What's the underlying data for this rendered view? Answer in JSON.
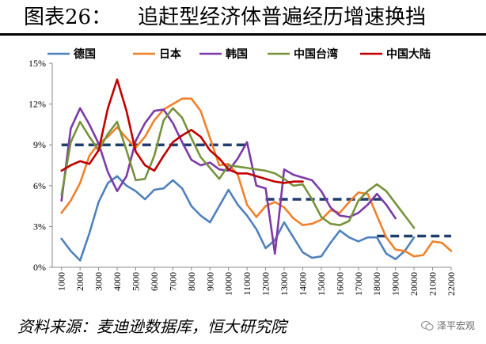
{
  "header": {
    "title": "图表26：    追赶型经济体普遍经历增速换挡"
  },
  "footer": {
    "source": "资料来源：麦迪逊数据库，恒大研究院",
    "watermark": "泽平宏观"
  },
  "chart_data": {
    "type": "line",
    "xlabel": "",
    "ylabel": "",
    "x": [
      1000,
      2000,
      3000,
      4000,
      5000,
      6000,
      7000,
      8000,
      9000,
      10000,
      11000,
      12000,
      13000,
      14000,
      15000,
      16000,
      17000,
      18000,
      19000,
      20000,
      21000,
      22000
    ],
    "y_ticks": [
      "0%",
      "3%",
      "6%",
      "9%",
      "12%",
      "15%"
    ],
    "ylim": [
      0,
      15
    ],
    "grid": false,
    "legend_position": "top",
    "series": [
      {
        "name": "德国",
        "color": "#4f81bd",
        "points": [
          [
            1000,
            2.1
          ],
          [
            1500,
            1.2
          ],
          [
            2000,
            0.5
          ],
          [
            2500,
            2.5
          ],
          [
            3000,
            4.8
          ],
          [
            3500,
            6.2
          ],
          [
            4000,
            6.7
          ],
          [
            4500,
            6.0
          ],
          [
            5000,
            5.6
          ],
          [
            5500,
            5.0
          ],
          [
            6000,
            5.7
          ],
          [
            6500,
            5.8
          ],
          [
            7000,
            6.4
          ],
          [
            7500,
            5.8
          ],
          [
            8000,
            4.5
          ],
          [
            8500,
            3.8
          ],
          [
            9000,
            3.3
          ],
          [
            9500,
            4.5
          ],
          [
            10000,
            5.7
          ],
          [
            10500,
            4.6
          ],
          [
            11000,
            3.8
          ],
          [
            11500,
            2.8
          ],
          [
            12000,
            1.4
          ],
          [
            12500,
            2.0
          ],
          [
            13000,
            3.3
          ],
          [
            13500,
            2.2
          ],
          [
            14000,
            1.1
          ],
          [
            14500,
            0.7
          ],
          [
            15000,
            0.8
          ],
          [
            15500,
            1.8
          ],
          [
            16000,
            2.7
          ],
          [
            16500,
            2.2
          ],
          [
            17000,
            1.9
          ],
          [
            17500,
            2.2
          ],
          [
            18000,
            2.2
          ],
          [
            18500,
            1.0
          ],
          [
            19000,
            0.6
          ],
          [
            19500,
            1.2
          ],
          [
            20000,
            2.2
          ]
        ]
      },
      {
        "name": "日本",
        "color": "#f0812b",
        "points": [
          [
            1000,
            4.0
          ],
          [
            1500,
            4.9
          ],
          [
            2000,
            6.2
          ],
          [
            2500,
            8.2
          ],
          [
            3000,
            9.1
          ],
          [
            3500,
            9.6
          ],
          [
            4000,
            10.3
          ],
          [
            4500,
            9.5
          ],
          [
            5000,
            8.8
          ],
          [
            5500,
            9.6
          ],
          [
            6000,
            10.8
          ],
          [
            6500,
            11.6
          ],
          [
            7000,
            12.0
          ],
          [
            7500,
            12.4
          ],
          [
            8000,
            12.4
          ],
          [
            8500,
            11.5
          ],
          [
            9000,
            9.5
          ],
          [
            9500,
            7.5
          ],
          [
            10000,
            7.6
          ],
          [
            10500,
            6.8
          ],
          [
            11000,
            4.6
          ],
          [
            11500,
            3.7
          ],
          [
            12000,
            4.5
          ],
          [
            12500,
            4.8
          ],
          [
            13000,
            4.4
          ],
          [
            13500,
            3.6
          ],
          [
            14000,
            3.1
          ],
          [
            14500,
            3.2
          ],
          [
            15000,
            3.5
          ],
          [
            15500,
            4.2
          ],
          [
            16000,
            4.0
          ],
          [
            16500,
            4.8
          ],
          [
            17000,
            5.5
          ],
          [
            17500,
            5.4
          ],
          [
            18000,
            3.8
          ],
          [
            18500,
            2.2
          ],
          [
            19000,
            1.3
          ],
          [
            19500,
            1.2
          ],
          [
            20000,
            0.8
          ],
          [
            20500,
            0.9
          ],
          [
            21000,
            1.9
          ],
          [
            21500,
            1.8
          ],
          [
            22000,
            1.2
          ]
        ]
      },
      {
        "name": "韩国",
        "color": "#7c3aa8",
        "points": [
          [
            1000,
            4.9
          ],
          [
            1500,
            10.2
          ],
          [
            2000,
            11.7
          ],
          [
            2500,
            10.5
          ],
          [
            3000,
            9.1
          ],
          [
            3500,
            7.0
          ],
          [
            4000,
            5.6
          ],
          [
            4500,
            6.7
          ],
          [
            5000,
            9.3
          ],
          [
            5500,
            10.6
          ],
          [
            6000,
            11.5
          ],
          [
            6500,
            11.6
          ],
          [
            7000,
            10.6
          ],
          [
            7500,
            9.2
          ],
          [
            8000,
            7.9
          ],
          [
            8500,
            7.5
          ],
          [
            9000,
            7.7
          ],
          [
            9500,
            7.2
          ],
          [
            10000,
            7.1
          ],
          [
            10500,
            8.0
          ],
          [
            11000,
            9.2
          ],
          [
            11500,
            6.0
          ],
          [
            12000,
            5.8
          ],
          [
            12500,
            1.0
          ],
          [
            13000,
            7.2
          ],
          [
            13500,
            6.8
          ],
          [
            14000,
            6.6
          ],
          [
            14500,
            6.4
          ],
          [
            15000,
            5.6
          ],
          [
            15500,
            4.4
          ],
          [
            16000,
            3.8
          ],
          [
            16500,
            3.7
          ],
          [
            17000,
            4.0
          ],
          [
            17500,
            4.6
          ],
          [
            18000,
            5.4
          ],
          [
            18500,
            4.6
          ],
          [
            19000,
            3.6
          ]
        ]
      },
      {
        "name": "中国台湾",
        "color": "#77933c",
        "points": [
          [
            1000,
            5.3
          ],
          [
            1500,
            9.2
          ],
          [
            2000,
            10.7
          ],
          [
            2500,
            9.6
          ],
          [
            3000,
            8.6
          ],
          [
            3500,
            9.8
          ],
          [
            4000,
            10.7
          ],
          [
            4500,
            8.6
          ],
          [
            5000,
            6.4
          ],
          [
            5500,
            6.5
          ],
          [
            6000,
            8.2
          ],
          [
            6500,
            10.8
          ],
          [
            7000,
            11.7
          ],
          [
            7500,
            11.0
          ],
          [
            8000,
            9.5
          ],
          [
            8500,
            8.1
          ],
          [
            9000,
            7.3
          ],
          [
            9500,
            6.5
          ],
          [
            10000,
            7.5
          ],
          [
            10500,
            7.4
          ],
          [
            11000,
            7.3
          ],
          [
            11500,
            7.2
          ],
          [
            12000,
            7.1
          ],
          [
            12500,
            6.9
          ],
          [
            13000,
            6.5
          ],
          [
            13500,
            6.0
          ],
          [
            14000,
            6.1
          ],
          [
            14500,
            5.0
          ],
          [
            15000,
            3.7
          ],
          [
            15500,
            3.2
          ],
          [
            16000,
            3.1
          ],
          [
            16500,
            3.4
          ],
          [
            17000,
            4.9
          ],
          [
            17500,
            5.6
          ],
          [
            18000,
            6.1
          ],
          [
            18500,
            5.6
          ],
          [
            19000,
            4.7
          ],
          [
            19500,
            3.8
          ],
          [
            20000,
            2.9
          ]
        ]
      },
      {
        "name": "中国大陆",
        "color": "#c00000",
        "points": [
          [
            1000,
            7.1
          ],
          [
            1500,
            7.5
          ],
          [
            2000,
            7.8
          ],
          [
            2500,
            7.6
          ],
          [
            3000,
            8.6
          ],
          [
            3500,
            11.7
          ],
          [
            4000,
            13.8
          ],
          [
            4500,
            11.5
          ],
          [
            5000,
            8.5
          ],
          [
            5500,
            7.5
          ],
          [
            6000,
            7.1
          ],
          [
            6500,
            8.2
          ],
          [
            7000,
            9.2
          ],
          [
            7500,
            9.7
          ],
          [
            8000,
            10.1
          ],
          [
            8500,
            9.6
          ],
          [
            9000,
            8.6
          ],
          [
            9500,
            8.0
          ],
          [
            10000,
            7.2
          ],
          [
            10500,
            6.9
          ],
          [
            11000,
            6.9
          ],
          [
            11500,
            6.7
          ],
          [
            12000,
            6.5
          ],
          [
            12500,
            6.3
          ],
          [
            13000,
            6.2
          ],
          [
            13500,
            6.3
          ],
          [
            14000,
            6.3
          ]
        ]
      }
    ],
    "reference_lines": [
      {
        "value": 9.0,
        "x_from": 1000,
        "x_to": 11000,
        "color": "#1f3e6e"
      },
      {
        "value": 5.0,
        "x_from": 12000,
        "x_to": 18500,
        "color": "#1f3e6e"
      },
      {
        "value": 2.3,
        "x_from": 18000,
        "x_to": 22000,
        "color": "#1f3e6e"
      }
    ]
  }
}
